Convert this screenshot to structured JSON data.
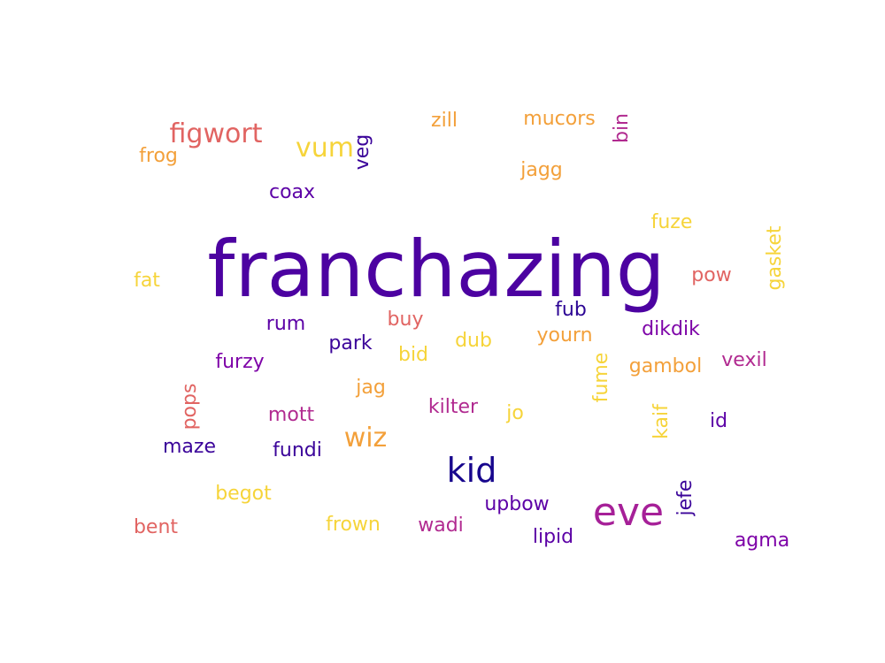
{
  "words": [
    {
      "text": "franchazing",
      "color": "#4c02a1"
    },
    {
      "text": "eve",
      "color": "#a62098"
    },
    {
      "text": "kid",
      "color": "#17068d"
    },
    {
      "text": "figwort",
      "color": "#e16462"
    },
    {
      "text": "vum",
      "color": "#f6d43a"
    },
    {
      "text": "wiz",
      "color": "#f3a03a"
    },
    {
      "text": "zill",
      "color": "#f3a03a"
    },
    {
      "text": "mucors",
      "color": "#f3a03a"
    },
    {
      "text": "bin",
      "color": "#b12a90"
    },
    {
      "text": "frog",
      "color": "#f3a03a"
    },
    {
      "text": "veg",
      "color": "#3b049a"
    },
    {
      "text": "jagg",
      "color": "#f3a03a"
    },
    {
      "text": "coax",
      "color": "#5c01a6"
    },
    {
      "text": "fuze",
      "color": "#f6d43a"
    },
    {
      "text": "gasket",
      "color": "#f6d43a"
    },
    {
      "text": "fat",
      "color": "#f6d43a"
    },
    {
      "text": "pow",
      "color": "#e16462"
    },
    {
      "text": "fub",
      "color": "#2c0594"
    },
    {
      "text": "rum",
      "color": "#5c01a6"
    },
    {
      "text": "buy",
      "color": "#e16462"
    },
    {
      "text": "dikdik",
      "color": "#7e03a8"
    },
    {
      "text": "park",
      "color": "#3b049a"
    },
    {
      "text": "dub",
      "color": "#f6d43a"
    },
    {
      "text": "yourn",
      "color": "#f3a03a"
    },
    {
      "text": "bid",
      "color": "#f6d43a"
    },
    {
      "text": "furzy",
      "color": "#7e03a8"
    },
    {
      "text": "gambol",
      "color": "#f3a03a"
    },
    {
      "text": "vexil",
      "color": "#b12a90"
    },
    {
      "text": "fume",
      "color": "#f6d43a"
    },
    {
      "text": "jag",
      "color": "#f3a03a"
    },
    {
      "text": "pops",
      "color": "#e16462"
    },
    {
      "text": "mott",
      "color": "#b12a90"
    },
    {
      "text": "kilter",
      "color": "#b12a90"
    },
    {
      "text": "jo",
      "color": "#f6d43a"
    },
    {
      "text": "kaif",
      "color": "#f6d43a"
    },
    {
      "text": "id",
      "color": "#5c01a6"
    },
    {
      "text": "maze",
      "color": "#3b049a"
    },
    {
      "text": "fundi",
      "color": "#3b049a"
    },
    {
      "text": "jefe",
      "color": "#3b049a"
    },
    {
      "text": "begot",
      "color": "#f6d43a"
    },
    {
      "text": "upbow",
      "color": "#5c01a6"
    },
    {
      "text": "bent",
      "color": "#e16462"
    },
    {
      "text": "frown",
      "color": "#f6d43a"
    },
    {
      "text": "wadi",
      "color": "#b12a90"
    },
    {
      "text": "lipid",
      "color": "#5c01a6"
    },
    {
      "text": "agma",
      "color": "#7e03a8"
    }
  ]
}
